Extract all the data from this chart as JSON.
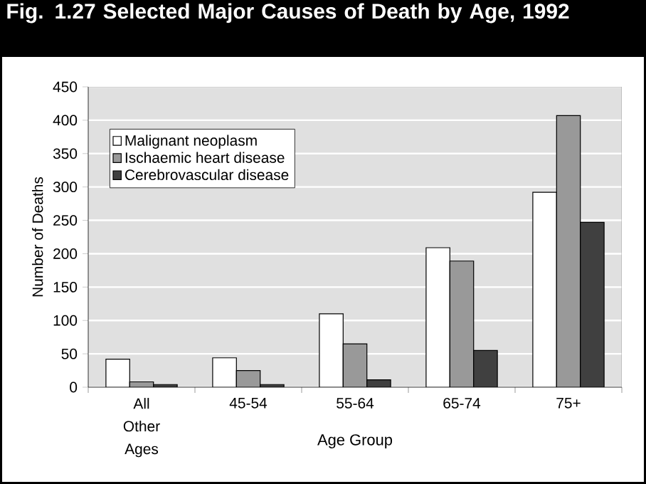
{
  "chart_data": {
    "type": "bar",
    "title": "Fig. 1.27  Selected Major Causes of Death by Age, 1992",
    "xlabel": "Age Group",
    "ylabel": "Number of Deaths",
    "categories": [
      "All Other Ages",
      "45-54",
      "55-64",
      "65-74",
      "75+"
    ],
    "series": [
      {
        "name": "Malignant neoplasm",
        "color": "#ffffff",
        "values": [
          42,
          44,
          110,
          209,
          292
        ]
      },
      {
        "name": "Ischaemic heart disease",
        "color": "#999999",
        "values": [
          8,
          25,
          65,
          189,
          407
        ]
      },
      {
        "name": "Cerebrovascular disease",
        "color": "#404040",
        "values": [
          4,
          4,
          11,
          55,
          247
        ]
      }
    ],
    "ylim": [
      0,
      450
    ],
    "yticks": [
      0,
      50,
      100,
      150,
      200,
      250,
      300,
      350,
      400,
      450
    ],
    "grid": "y",
    "legend": "top left"
  }
}
